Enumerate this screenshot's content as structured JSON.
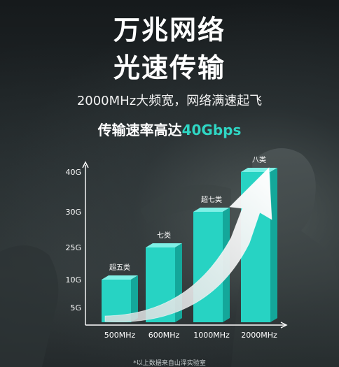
{
  "poster": {
    "headline_line1": "万兆网络",
    "headline_line2": "光速传输",
    "subline": "2000MHz大频宽，网络满速起飞",
    "rate_prefix": "传输速率高达",
    "rate_value": "40Gbps",
    "footnote": "*以上数据来自山泽实验室"
  },
  "colors": {
    "accent": "#2fd6c4",
    "bar_front": "#27d3c3",
    "bar_top": "#7ff0e6",
    "bar_side": "#14a79a",
    "text": "#ffffff"
  },
  "chart_data": {
    "type": "bar",
    "categories": [
      "500MHz",
      "600MHz",
      "1000MHz",
      "2000MHz"
    ],
    "bar_labels": [
      "超五类",
      "七类",
      "超七类",
      "八类"
    ],
    "values": [
      10,
      25,
      30,
      40
    ],
    "ytick_labels": [
      "5G",
      "10G",
      "25G",
      "30G",
      "40G"
    ],
    "ytick_positions": [
      5,
      10,
      25,
      30,
      40
    ],
    "ylim": [
      0,
      40
    ],
    "xlabel": "",
    "ylabel": "",
    "grid": false,
    "annotation": "upward curved arrow"
  }
}
